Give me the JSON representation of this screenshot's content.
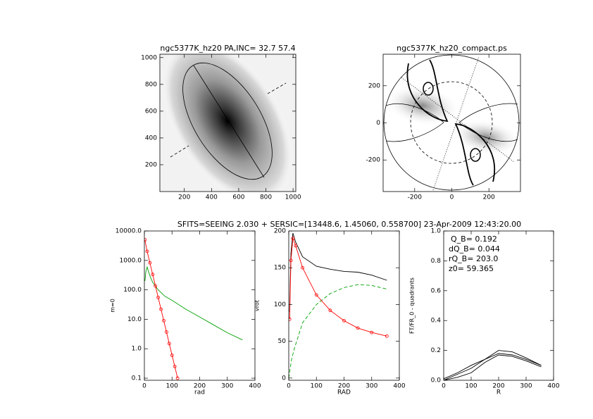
{
  "figure_title": "SFITS=SEEING 2.030 + SERSIC=[13448.6, 1.45060, 0.558700]  23-Apr-2009 12:43:20.00",
  "chart_data": [
    {
      "type": "image",
      "title": "ngc5377K_hz20 PA,INC= 32.7 57.4",
      "xlim": [
        20,
        1020
      ],
      "ylim": [
        0,
        1025
      ],
      "xticks": [
        200,
        400,
        600,
        800,
        1000
      ],
      "yticks": [
        200,
        400,
        600,
        800,
        1000
      ]
    },
    {
      "type": "image",
      "title": "ngc5377K_hz20_compact.ps",
      "xlim": [
        -370,
        370
      ],
      "ylim": [
        -370,
        370
      ],
      "xticks": [
        -200,
        0,
        200
      ],
      "yticks": [
        -200,
        0,
        200
      ]
    },
    {
      "type": "line",
      "xlabel": "rad",
      "ylabel": "m=0",
      "ylog": true,
      "xlim": [
        0,
        400
      ],
      "ylim": [
        0.085,
        10000
      ],
      "xticks": [
        0,
        100,
        200,
        300,
        400
      ],
      "yticks": [
        {
          "value": 0.1,
          "label": "0.1"
        },
        {
          "value": 1,
          "label": "1.0"
        },
        {
          "value": 10,
          "label": "10.0"
        },
        {
          "value": 100,
          "label": "100.0"
        },
        {
          "value": 1000,
          "label": "1000.0"
        },
        {
          "value": 10000,
          "label": "10000.0"
        }
      ],
      "series": [
        {
          "color": "#00a000",
          "x": [
            2,
            5,
            10,
            20,
            30,
            50,
            75,
            100,
            150,
            200,
            250,
            300,
            355
          ],
          "values": [
            200,
            400,
            600,
            300,
            180,
            100,
            60,
            44,
            22,
            12,
            6.5,
            3.5,
            2.0
          ]
        },
        {
          "color": "#ff0000",
          "marker": "o",
          "x": [
            2,
            10,
            20,
            30,
            40,
            50,
            60,
            70,
            80,
            90,
            100,
            110,
            120
          ],
          "values": [
            5000,
            2040,
            830,
            335,
            136,
            55,
            22,
            9,
            3.7,
            1.5,
            0.6,
            0.25,
            0.1
          ]
        }
      ]
    },
    {
      "type": "line",
      "xlabel": "RAD",
      "ylabel": "vrot",
      "xlim": [
        0,
        400
      ],
      "ylim": [
        -3,
        200
      ],
      "xticks": [
        0,
        100,
        200,
        300,
        400
      ],
      "yticks": [
        0,
        50,
        100,
        150,
        200
      ],
      "series": [
        {
          "color": "#000000",
          "x": [
            3,
            8,
            15,
            25,
            50,
            100,
            150,
            200,
            250,
            300,
            355
          ],
          "values": [
            90,
            170,
            197,
            185,
            165,
            152,
            148,
            145,
            144,
            140,
            133
          ]
        },
        {
          "color": "#00a000",
          "dash": true,
          "x": [
            0,
            10,
            20,
            50,
            100,
            150,
            200,
            250,
            300,
            355
          ],
          "values": [
            0,
            25,
            40,
            75,
            100,
            115,
            123,
            127,
            126,
            121
          ]
        },
        {
          "color": "#ff0000",
          "marker": "o",
          "x": [
            3,
            8,
            15,
            25,
            50,
            100,
            150,
            200,
            250,
            300,
            355
          ],
          "values": [
            80,
            160,
            190,
            180,
            150,
            113,
            92,
            78,
            68,
            62,
            57
          ]
        }
      ]
    },
    {
      "type": "line",
      "xlabel": "R",
      "ylabel": "FT/FR_0 - quadrants",
      "xlim": [
        0,
        400
      ],
      "ylim": [
        0,
        1
      ],
      "xticks": [
        0,
        100,
        200,
        300,
        400
      ],
      "yticks": [
        {
          "value": 0,
          "label": "0.0"
        },
        0.2,
        0.4,
        0.6,
        0.8,
        {
          "value": 1,
          "label": "1.0"
        }
      ],
      "annotations": [
        "Q_B=  0.192",
        "dQ_B=  0.044",
        "rQ_B=  203.0",
        "z0= 59.365"
      ],
      "series": [
        {
          "color": "#000000",
          "x": [
            0,
            50,
            100,
            150,
            200,
            250,
            300,
            355
          ],
          "values": [
            0,
            0.04,
            0.08,
            0.14,
            0.2,
            0.19,
            0.15,
            0.1
          ]
        },
        {
          "color": "#000000",
          "x": [
            0,
            50,
            100,
            150,
            200,
            250,
            300,
            355
          ],
          "values": [
            0.01,
            0.05,
            0.1,
            0.14,
            0.18,
            0.17,
            0.14,
            0.1
          ]
        },
        {
          "color": "#000000",
          "x": [
            0,
            50,
            100,
            150,
            200,
            250,
            300,
            355
          ],
          "values": [
            0,
            0.02,
            0.05,
            0.12,
            0.17,
            0.16,
            0.13,
            0.09
          ]
        }
      ]
    }
  ]
}
